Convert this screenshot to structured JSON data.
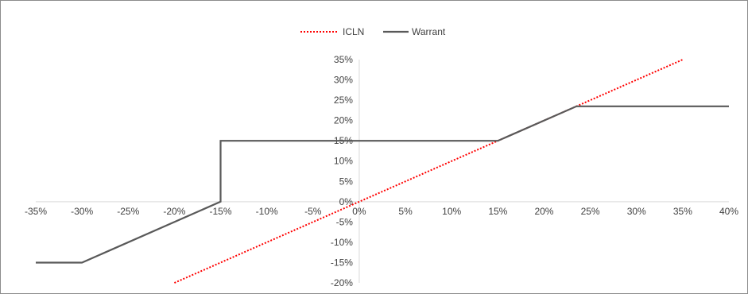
{
  "chart_data": {
    "type": "line",
    "title": "",
    "xlabel": "",
    "ylabel": "",
    "xlim": [
      -0.35,
      0.4
    ],
    "ylim": [
      -0.2,
      0.35
    ],
    "x_ticks": [
      "-35%",
      "-30%",
      "-25%",
      "-20%",
      "-15%",
      "-10%",
      "-5%",
      "0%",
      "5%",
      "10%",
      "15%",
      "20%",
      "25%",
      "30%",
      "35%",
      "40%"
    ],
    "y_ticks": [
      "35%",
      "30%",
      "25%",
      "20%",
      "15%",
      "10%",
      "5%",
      "0%",
      "-5%",
      "-10%",
      "-15%",
      "-20%"
    ],
    "grid": false,
    "legend_position": "top",
    "series": [
      {
        "name": "ICLN",
        "style": "dotted",
        "color": "#ff0000",
        "points": [
          [
            -0.2,
            -0.2
          ],
          [
            0.35,
            0.35
          ]
        ]
      },
      {
        "name": "Warrant",
        "style": "solid",
        "color": "#595959",
        "points": [
          [
            -0.35,
            -0.15
          ],
          [
            -0.3,
            -0.15
          ],
          [
            -0.15,
            0.0
          ],
          [
            -0.15,
            0.15
          ],
          [
            0.15,
            0.15
          ],
          [
            0.235,
            0.235
          ],
          [
            0.4,
            0.235
          ]
        ]
      }
    ]
  }
}
